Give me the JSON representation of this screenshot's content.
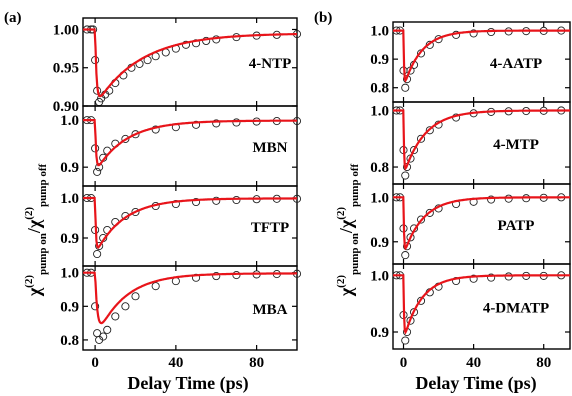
{
  "figure": {
    "panel_a_label": "(a)",
    "panel_b_label": "(b)",
    "ylabel_base": "χ",
    "ylabel_sup": "(2)",
    "ylabel_sub_on": "pump on",
    "ylabel_slash": "/",
    "ylabel_sub_off": "pump off",
    "xlabel": "Delay Time (ps)",
    "colors": {
      "data_marker": "#222222",
      "fit_line": "#e8141a",
      "frame": "#000000"
    },
    "marker": "open-circle",
    "line": "solid"
  },
  "chart_data": [
    {
      "type": "scatter",
      "panel": "a",
      "title": "",
      "xlabel": "Delay Time (ps)",
      "x_ticks": [
        "0",
        "40",
        "80"
      ],
      "xlim": [
        -6,
        100
      ],
      "subplots": [
        {
          "label": "4-NTP",
          "ylim": [
            0.9,
            1.015
          ],
          "y_ticks": [
            "0.90",
            "0.95",
            "1.00"
          ],
          "series": [
            {
              "values_kind": "decay",
              "points": [
                [
                  -4,
                  1.0
                ],
                [
                  -2,
                  1.0
                ],
                [
                  -1,
                  1.0
                ],
                [
                  0,
                  0.96
                ],
                [
                  1,
                  0.92
                ],
                [
                  2,
                  0.905
                ],
                [
                  3,
                  0.91
                ],
                [
                  5,
                  0.915
                ],
                [
                  7,
                  0.92
                ],
                [
                  10,
                  0.93
                ],
                [
                  14,
                  0.94
                ],
                [
                  18,
                  0.95
                ],
                [
                  22,
                  0.955
                ],
                [
                  26,
                  0.96
                ],
                [
                  30,
                  0.965
                ],
                [
                  35,
                  0.97
                ],
                [
                  40,
                  0.975
                ],
                [
                  45,
                  0.98
                ],
                [
                  50,
                  0.982
                ],
                [
                  55,
                  0.985
                ],
                [
                  60,
                  0.987
                ],
                [
                  70,
                  0.99
                ],
                [
                  80,
                  0.992
                ],
                [
                  90,
                  0.993
                ],
                [
                  100,
                  0.994
                ]
              ],
              "fit": {
                "baseline": 1.0,
                "amplitude": 0.095,
                "tau_ps": 22,
                "rise_ps": 0.7,
                "offset": 0.995
              }
            }
          ]
        },
        {
          "label": "MBN",
          "ylim": [
            0.86,
            1.03
          ],
          "y_ticks": [
            "0.9",
            "1.0"
          ],
          "series": [
            {
              "values_kind": "decay",
              "points": [
                [
                  -4,
                  1.0
                ],
                [
                  -2,
                  1.0
                ],
                [
                  0,
                  0.94
                ],
                [
                  1,
                  0.89
                ],
                [
                  2,
                  0.9
                ],
                [
                  4,
                  0.92
                ],
                [
                  6,
                  0.935
                ],
                [
                  10,
                  0.95
                ],
                [
                  15,
                  0.96
                ],
                [
                  20,
                  0.97
                ],
                [
                  30,
                  0.98
                ],
                [
                  40,
                  0.985
                ],
                [
                  50,
                  0.99
                ],
                [
                  60,
                  0.993
                ],
                [
                  70,
                  0.995
                ],
                [
                  80,
                  0.997
                ],
                [
                  90,
                  0.998
                ],
                [
                  100,
                  0.998
                ]
              ],
              "fit": {
                "baseline": 1.0,
                "amplitude": 0.11,
                "tau_ps": 15,
                "rise_ps": 0.5,
                "offset": 0.999
              }
            }
          ]
        },
        {
          "label": "TFTP",
          "ylim": [
            0.83,
            1.03
          ],
          "y_ticks": [
            "0.9",
            "1.0"
          ],
          "series": [
            {
              "values_kind": "decay",
              "points": [
                [
                  -4,
                  1.0
                ],
                [
                  -2,
                  1.0
                ],
                [
                  0,
                  0.92
                ],
                [
                  1,
                  0.86
                ],
                [
                  2,
                  0.88
                ],
                [
                  4,
                  0.9
                ],
                [
                  6,
                  0.92
                ],
                [
                  10,
                  0.94
                ],
                [
                  15,
                  0.955
                ],
                [
                  20,
                  0.965
                ],
                [
                  30,
                  0.98
                ],
                [
                  40,
                  0.985
                ],
                [
                  50,
                  0.99
                ],
                [
                  60,
                  0.993
                ],
                [
                  70,
                  0.995
                ],
                [
                  80,
                  0.997
                ],
                [
                  90,
                  0.998
                ],
                [
                  100,
                  0.998
                ]
              ],
              "fit": {
                "baseline": 1.0,
                "amplitude": 0.14,
                "tau_ps": 14,
                "rise_ps": 0.4,
                "offset": 0.999
              }
            }
          ]
        },
        {
          "label": "MBA",
          "ylim": [
            0.77,
            1.02
          ],
          "y_ticks": [
            "0.8",
            "0.9",
            "1.0"
          ],
          "series": [
            {
              "values_kind": "decay",
              "points": [
                [
                  -4,
                  1.0
                ],
                [
                  -2,
                  1.0
                ],
                [
                  0,
                  0.9
                ],
                [
                  1,
                  0.82
                ],
                [
                  2,
                  0.8
                ],
                [
                  4,
                  0.81
                ],
                [
                  6,
                  0.83
                ],
                [
                  10,
                  0.87
                ],
                [
                  15,
                  0.9
                ],
                [
                  20,
                  0.93
                ],
                [
                  30,
                  0.96
                ],
                [
                  40,
                  0.975
                ],
                [
                  50,
                  0.985
                ],
                [
                  60,
                  0.99
                ],
                [
                  70,
                  0.993
                ],
                [
                  80,
                  0.995
                ],
                [
                  90,
                  0.996
                ],
                [
                  100,
                  0.997
                ]
              ],
              "fit": {
                "baseline": 1.0,
                "amplitude": 0.2,
                "tau_ps": 14,
                "rise_ps": 1.2,
                "offset": 0.998
              }
            }
          ]
        }
      ]
    },
    {
      "type": "scatter",
      "panel": "b",
      "title": "",
      "xlabel": "Delay Time (ps)",
      "x_ticks": [
        "0",
        "40",
        "80"
      ],
      "xlim": [
        -6,
        95
      ],
      "subplots": [
        {
          "label": "4-AATP",
          "ylim": [
            0.75,
            1.03
          ],
          "y_ticks": [
            "0.8",
            "0.9",
            "1.0"
          ],
          "series": [
            {
              "values_kind": "decay",
              "points": [
                [
                  -4,
                  1.0
                ],
                [
                  -2,
                  1.0
                ],
                [
                  0,
                  0.86
                ],
                [
                  1,
                  0.8
                ],
                [
                  2,
                  0.83
                ],
                [
                  4,
                  0.86
                ],
                [
                  6,
                  0.88
                ],
                [
                  10,
                  0.92
                ],
                [
                  15,
                  0.95
                ],
                [
                  20,
                  0.97
                ],
                [
                  30,
                  0.985
                ],
                [
                  40,
                  0.99
                ],
                [
                  50,
                  0.995
                ],
                [
                  60,
                  0.997
                ],
                [
                  70,
                  0.998
                ],
                [
                  80,
                  0.999
                ],
                [
                  90,
                  1.0
                ]
              ],
              "fit": {
                "baseline": 1.0,
                "amplitude": 0.2,
                "tau_ps": 10,
                "rise_ps": 0.3,
                "offset": 1.0
              }
            }
          ]
        },
        {
          "label": "4-MTP",
          "ylim": [
            0.74,
            1.03
          ],
          "y_ticks": [
            "0.8",
            "1.0"
          ],
          "series": [
            {
              "values_kind": "decay",
              "points": [
                [
                  -4,
                  1.0
                ],
                [
                  -2,
                  1.0
                ],
                [
                  0,
                  0.86
                ],
                [
                  1,
                  0.77
                ],
                [
                  2,
                  0.8
                ],
                [
                  4,
                  0.83
                ],
                [
                  6,
                  0.86
                ],
                [
                  10,
                  0.9
                ],
                [
                  15,
                  0.93
                ],
                [
                  20,
                  0.95
                ],
                [
                  30,
                  0.975
                ],
                [
                  40,
                  0.99
                ],
                [
                  50,
                  0.995
                ],
                [
                  60,
                  0.997
                ],
                [
                  70,
                  0.998
                ],
                [
                  80,
                  0.999
                ],
                [
                  90,
                  1.0
                ]
              ],
              "fit": {
                "baseline": 1.0,
                "amplitude": 0.23,
                "tau_ps": 12,
                "rise_ps": 0.3,
                "offset": 1.0
              }
            }
          ]
        },
        {
          "label": "PATP",
          "ylim": [
            0.85,
            1.03
          ],
          "y_ticks": [
            "0.9",
            "1.0"
          ],
          "series": [
            {
              "values_kind": "decay",
              "points": [
                [
                  -4,
                  1.0
                ],
                [
                  -2,
                  1.0
                ],
                [
                  0,
                  0.93
                ],
                [
                  1,
                  0.87
                ],
                [
                  2,
                  0.89
                ],
                [
                  4,
                  0.91
                ],
                [
                  6,
                  0.93
                ],
                [
                  10,
                  0.95
                ],
                [
                  15,
                  0.965
                ],
                [
                  20,
                  0.975
                ],
                [
                  30,
                  0.985
                ],
                [
                  40,
                  0.99
                ],
                [
                  50,
                  0.995
                ],
                [
                  60,
                  0.997
                ],
                [
                  70,
                  0.998
                ],
                [
                  80,
                  0.999
                ],
                [
                  90,
                  1.0
                ]
              ],
              "fit": {
                "baseline": 1.0,
                "amplitude": 0.13,
                "tau_ps": 11,
                "rise_ps": 0.3,
                "offset": 1.0
              }
            }
          ]
        },
        {
          "label": "4-DMATP",
          "ylim": [
            0.87,
            1.02
          ],
          "y_ticks": [
            "0.9",
            "1.0"
          ],
          "series": [
            {
              "values_kind": "decay",
              "points": [
                [
                  -4,
                  1.0
                ],
                [
                  -2,
                  1.0
                ],
                [
                  0,
                  0.93
                ],
                [
                  1,
                  0.885
                ],
                [
                  2,
                  0.9
                ],
                [
                  4,
                  0.92
                ],
                [
                  6,
                  0.935
                ],
                [
                  10,
                  0.955
                ],
                [
                  15,
                  0.97
                ],
                [
                  20,
                  0.98
                ],
                [
                  30,
                  0.99
                ],
                [
                  40,
                  0.994
                ],
                [
                  50,
                  0.996
                ],
                [
                  60,
                  0.998
                ],
                [
                  70,
                  0.999
                ],
                [
                  80,
                  0.999
                ],
                [
                  90,
                  1.0
                ]
              ],
              "fit": {
                "baseline": 1.0,
                "amplitude": 0.115,
                "tau_ps": 10,
                "rise_ps": 0.3,
                "offset": 1.0
              }
            }
          ]
        }
      ]
    }
  ]
}
